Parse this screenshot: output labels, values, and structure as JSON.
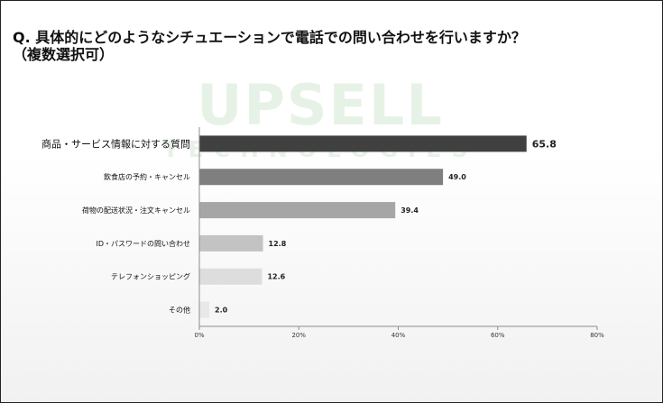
{
  "question": {
    "line1": "Q. 具体的にどのようなシチュエーションで電話での問い合わせを行いますか？",
    "line2": "（複数選択可）"
  },
  "watermark": {
    "main": "UPSELL",
    "sub": "TECHNOLOGIES"
  },
  "chart_data": {
    "type": "bar",
    "orientation": "horizontal",
    "categories": [
      "商品・サービス情報に対する質問",
      "飲食店の予約・キャンセル",
      "荷物の配送状況・注文キャンセル",
      "ID・パスワードの問い合わせ",
      "テレフォンショッピング",
      "その他"
    ],
    "values": [
      65.8,
      49.0,
      39.4,
      12.8,
      12.6,
      2.0
    ],
    "value_labels": [
      "65.8",
      "49.0",
      "39.4",
      "12.8",
      "12.6",
      "2.0"
    ],
    "colors": [
      "#404040",
      "#7f7f7f",
      "#a6a6a6",
      "#c3c3c3",
      "#dddddd",
      "#e8e8e8"
    ],
    "xlim": [
      0,
      80
    ],
    "xticks": [
      0,
      20,
      40,
      60,
      80
    ],
    "xtick_labels": [
      "0%",
      "20%",
      "40%",
      "60%",
      "80%"
    ],
    "grid": false,
    "legend": "none"
  }
}
